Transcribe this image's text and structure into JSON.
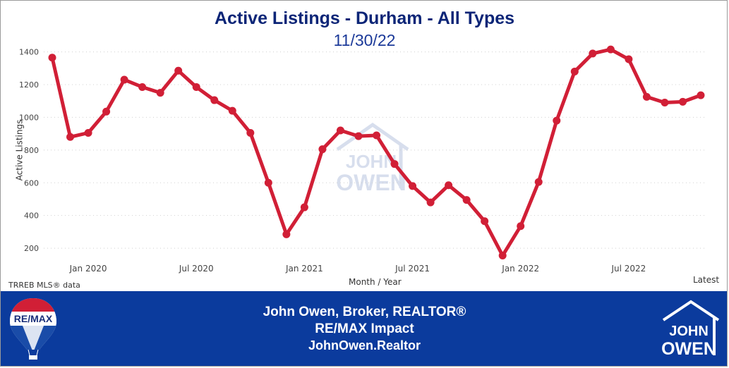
{
  "header": {
    "title": "Active Listings - Durham - All Types",
    "date": "11/30/22"
  },
  "chart_data": {
    "type": "line",
    "title": "Active Listings - Durham - All Types",
    "subtitle": "11/30/22",
    "xlabel": "Month / Year",
    "ylabel": "Active Listings",
    "x_tick_labels": [
      "Jan 2020",
      "Jul 2020",
      "Jan 2021",
      "Jul 2021",
      "Jan 2022",
      "Jul 2022",
      "Latest"
    ],
    "y_ticks": [
      200,
      400,
      600,
      800,
      1000,
      1200,
      1400
    ],
    "ylim": [
      140,
      1450
    ],
    "grid": "horizontal dotted",
    "series": [
      {
        "color": "#d11f36",
        "x": [
          "Nov 2019",
          "Dec 2019",
          "Jan 2020",
          "Feb 2020",
          "Mar 2020",
          "Apr 2020",
          "May 2020",
          "Jun 2020",
          "Jul 2020",
          "Aug 2020",
          "Sep 2020",
          "Oct 2020",
          "Nov 2020",
          "Dec 2020",
          "Jan 2021",
          "Feb 2021",
          "Mar 2021",
          "Apr 2021",
          "May 2021",
          "Jun 2021",
          "Jul 2021",
          "Aug 2021",
          "Sep 2021",
          "Oct 2021",
          "Nov 2021",
          "Dec 2021",
          "Jan 2022",
          "Feb 2022",
          "Mar 2022",
          "Apr 2022",
          "May 2022",
          "Jun 2022",
          "Jul 2022",
          "Aug 2022",
          "Sep 2022",
          "Oct 2022",
          "Nov 2022"
        ],
        "values": [
          1365,
          880,
          905,
          1035,
          1230,
          1185,
          1150,
          1285,
          1185,
          1105,
          1040,
          905,
          600,
          285,
          450,
          805,
          920,
          885,
          890,
          715,
          580,
          480,
          585,
          495,
          365,
          155,
          335,
          605,
          980,
          1280,
          1390,
          1415,
          1355,
          1125,
          1090,
          1095,
          1135
        ]
      }
    ]
  },
  "source_note": "TRREB MLS® data",
  "footer": {
    "line1": "John Owen, Broker, REALTOR®",
    "line2": "RE/MAX Impact",
    "line3": "JohnOwen.Realtor"
  },
  "logos": {
    "remax_text": "RE/MAX",
    "owen_logo_line1": "JOHN",
    "owen_logo_line2": "OWEN"
  },
  "colors": {
    "line": "#d11f36",
    "title": "#0c2577",
    "footer_bg": "#0b3b9d"
  }
}
